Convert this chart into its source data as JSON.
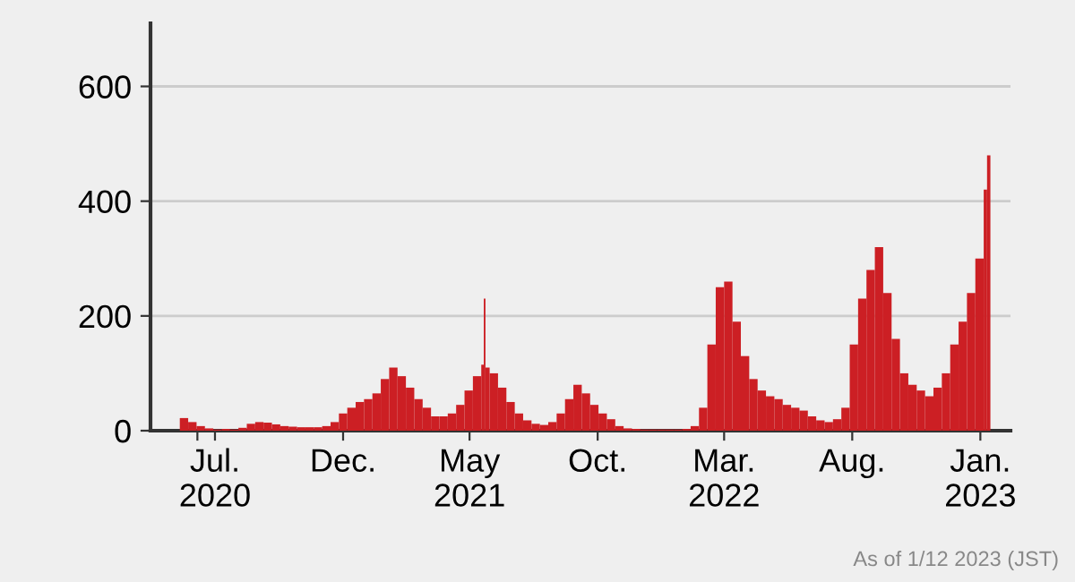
{
  "chart_data": {
    "type": "bar",
    "x": [
      "2020-05-20",
      "2020-05-30",
      "2020-06-09",
      "2020-06-19",
      "2020-06-29",
      "2020-07-09",
      "2020-07-19",
      "2020-07-29",
      "2020-08-08",
      "2020-08-18",
      "2020-08-28",
      "2020-09-07",
      "2020-09-17",
      "2020-09-27",
      "2020-10-07",
      "2020-10-17",
      "2020-10-27",
      "2020-11-06",
      "2020-11-16",
      "2020-11-26",
      "2020-12-06",
      "2020-12-16",
      "2020-12-26",
      "2021-01-05",
      "2021-01-15",
      "2021-01-25",
      "2021-02-04",
      "2021-02-14",
      "2021-02-24",
      "2021-03-06",
      "2021-03-16",
      "2021-03-26",
      "2021-04-05",
      "2021-04-15",
      "2021-04-25",
      "2021-05-05",
      "2021-05-15",
      "2021-05-18",
      "2021-05-20",
      "2021-05-25",
      "2021-06-04",
      "2021-06-14",
      "2021-06-24",
      "2021-07-04",
      "2021-07-14",
      "2021-07-24",
      "2021-08-03",
      "2021-08-13",
      "2021-08-23",
      "2021-09-02",
      "2021-09-12",
      "2021-09-22",
      "2021-10-02",
      "2021-10-12",
      "2021-10-22",
      "2021-11-01",
      "2021-11-11",
      "2021-11-21",
      "2021-12-01",
      "2021-12-11",
      "2021-12-21",
      "2021-12-31",
      "2022-01-10",
      "2022-01-20",
      "2022-01-30",
      "2022-02-09",
      "2022-02-19",
      "2022-03-01",
      "2022-03-11",
      "2022-03-21",
      "2022-03-31",
      "2022-04-10",
      "2022-04-20",
      "2022-04-30",
      "2022-05-10",
      "2022-05-20",
      "2022-05-30",
      "2022-06-09",
      "2022-06-19",
      "2022-06-29",
      "2022-07-09",
      "2022-07-19",
      "2022-07-29",
      "2022-08-08",
      "2022-08-18",
      "2022-08-28",
      "2022-09-07",
      "2022-09-17",
      "2022-09-27",
      "2022-10-07",
      "2022-10-17",
      "2022-10-27",
      "2022-11-06",
      "2022-11-16",
      "2022-11-26",
      "2022-12-06",
      "2022-12-16",
      "2022-12-26",
      "2023-01-05",
      "2023-01-09"
    ],
    "series": [
      {
        "color": "#cc1f24",
        "values": [
          22,
          15,
          8,
          4,
          2,
          3,
          2,
          5,
          12,
          15,
          14,
          11,
          8,
          7,
          6,
          6,
          6,
          8,
          15,
          30,
          40,
          50,
          55,
          65,
          90,
          110,
          95,
          75,
          55,
          40,
          25,
          25,
          30,
          45,
          70,
          95,
          115,
          230,
          110,
          100,
          75,
          50,
          30,
          18,
          12,
          10,
          15,
          30,
          55,
          80,
          65,
          45,
          30,
          20,
          8,
          4,
          3,
          2,
          2,
          2,
          2,
          2,
          3,
          8,
          40,
          150,
          250,
          260,
          190,
          130,
          90,
          70,
          60,
          55,
          45,
          40,
          35,
          25,
          18,
          15,
          20,
          40,
          150,
          230,
          280,
          320,
          240,
          160,
          100,
          80,
          70,
          60,
          75,
          100,
          150,
          190,
          240,
          300,
          420,
          480
        ]
      }
    ],
    "xlim": [
      "2020-04-15",
      "2023-02-06"
    ],
    "xticks": [
      {
        "value": "2020-06-10",
        "label": null
      },
      {
        "value": "2020-07-01",
        "label": "Jul.\n2020"
      },
      {
        "value": "2020-12-01",
        "label": "Dec."
      },
      {
        "value": "2021-05-01",
        "label": "May\n2021"
      },
      {
        "value": "2021-10-01",
        "label": "Oct."
      },
      {
        "value": "2022-03-01",
        "label": "Mar.\n2022"
      },
      {
        "value": "2022-08-01",
        "label": "Aug."
      },
      {
        "value": "2023-01-01",
        "label": "Jan.\n2023"
      }
    ],
    "ylim": [
      0,
      710
    ],
    "yticks": [
      0,
      200,
      400,
      600
    ],
    "grid": "y",
    "annotations": [
      "As of 1/12 2023 (JST)"
    ]
  }
}
